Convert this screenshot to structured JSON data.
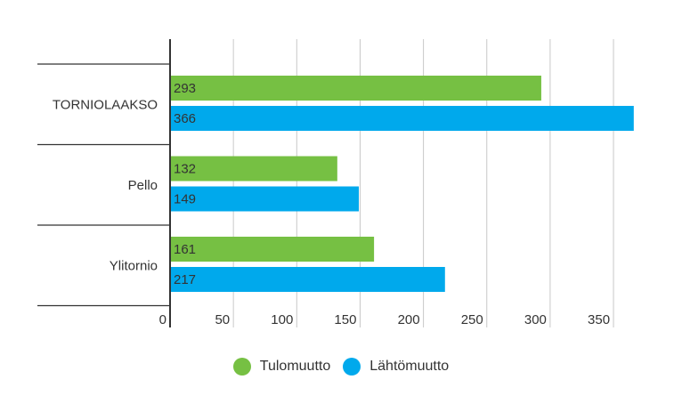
{
  "chart_data": {
    "type": "bar",
    "orientation": "horizontal",
    "categories": [
      "TORNIOLAAKSO",
      "Pello",
      "Ylitornio"
    ],
    "series": [
      {
        "name": "Tulomuutto",
        "values": [
          293,
          132,
          161
        ],
        "color": "#76c043"
      },
      {
        "name": "Lähtömuutto",
        "values": [
          366,
          149,
          217
        ],
        "color": "#00a9ec"
      }
    ],
    "x_ticks": [
      0,
      50,
      100,
      150,
      200,
      250,
      300,
      350
    ],
    "xlim": [
      0,
      370
    ],
    "grid": "vertical",
    "legend_position": "bottom-center"
  }
}
